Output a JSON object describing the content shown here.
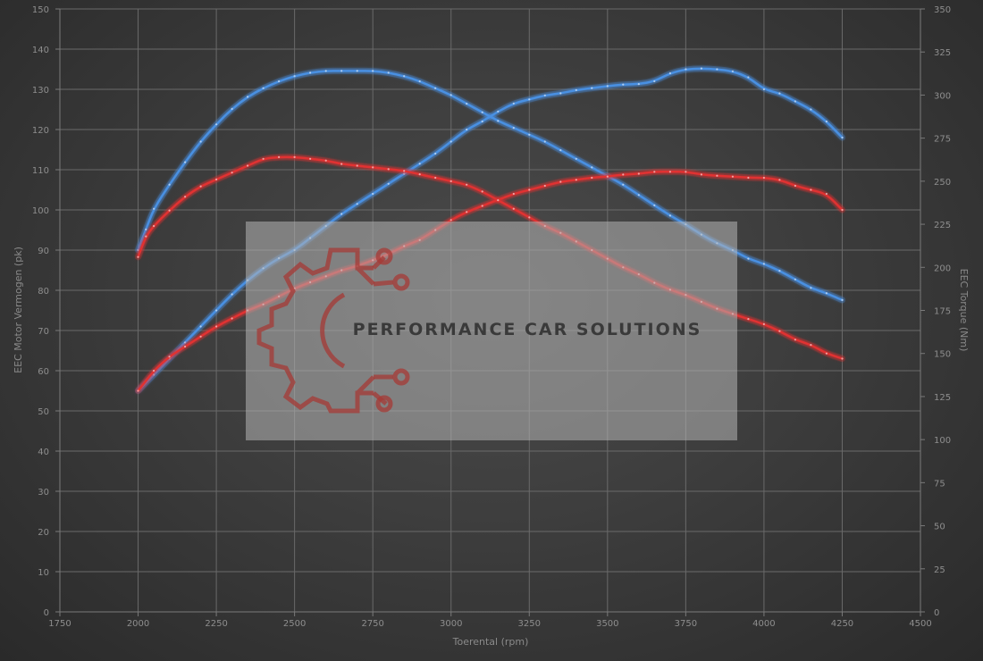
{
  "chart_data": {
    "type": "line",
    "xlabel": "Toerental (rpm)",
    "ylabel_left": "EEC Motor Vermogen (pk)",
    "ylabel_right": "EEC Torque (Nm)",
    "xlim": [
      1750,
      4500
    ],
    "ylim_left": [
      0,
      150
    ],
    "ylim_right": [
      0,
      350
    ],
    "x_ticks": [
      1750,
      2000,
      2250,
      2500,
      2750,
      3000,
      3250,
      3500,
      3750,
      4000,
      4250,
      4500
    ],
    "y_ticks_left": [
      0,
      10,
      20,
      30,
      40,
      50,
      60,
      70,
      80,
      90,
      100,
      110,
      120,
      130,
      140,
      150
    ],
    "y_ticks_right": [
      0,
      25,
      50,
      75,
      100,
      125,
      150,
      175,
      200,
      225,
      250,
      275,
      300,
      325,
      350
    ],
    "grid": true,
    "series": [
      {
        "axis": "left",
        "color": "#4a90e2",
        "x": [
          2000,
          2050,
          2100,
          2150,
          2200,
          2250,
          2300,
          2350,
          2400,
          2450,
          2500,
          2550,
          2600,
          2650,
          2700,
          2750,
          2800,
          2850,
          2900,
          2950,
          3000,
          3050,
          3100,
          3150,
          3200,
          3250,
          3300,
          3350,
          3400,
          3450,
          3500,
          3550,
          3600,
          3650,
          3700,
          3750,
          3800,
          3850,
          3900,
          3950,
          4000,
          4050,
          4100,
          4150,
          4200,
          4250
        ],
        "values": [
          55,
          59,
          63,
          67,
          71,
          75,
          79,
          82.5,
          85.5,
          88,
          90,
          93,
          96,
          99,
          101.5,
          104,
          106.5,
          109,
          111.5,
          114,
          117,
          120,
          122,
          124.5,
          126.5,
          127.5,
          128.5,
          129,
          129.8,
          130.3,
          130.8,
          131.2,
          131.3,
          132,
          134,
          135,
          135.2,
          135,
          134.5,
          133,
          130,
          129,
          127,
          125,
          122,
          118
        ]
      },
      {
        "axis": "right",
        "color": "#4a90e2",
        "x": [
          2000,
          2025,
          2050,
          2100,
          2150,
          2200,
          2250,
          2300,
          2350,
          2400,
          2450,
          2500,
          2550,
          2600,
          2650,
          2700,
          2750,
          2800,
          2850,
          2900,
          2950,
          3000,
          3050,
          3100,
          3150,
          3200,
          3250,
          3300,
          3350,
          3400,
          3450,
          3500,
          3550,
          3600,
          3650,
          3700,
          3750,
          3800,
          3850,
          3900,
          3950,
          4000,
          4050,
          4100,
          4150,
          4200,
          4250
        ],
        "values": [
          210,
          222,
          234,
          248,
          261,
          273,
          283,
          292,
          299,
          304,
          308,
          311,
          313,
          314,
          314,
          314,
          314,
          313,
          311,
          308,
          304,
          300,
          295,
          290,
          285,
          281,
          277,
          273,
          268,
          263,
          258,
          253,
          248,
          242,
          236,
          230,
          225,
          219,
          214,
          210,
          205,
          202,
          198,
          193,
          188,
          185,
          181
        ]
      },
      {
        "axis": "left",
        "color": "#e03030",
        "x": [
          2000,
          2050,
          2100,
          2150,
          2200,
          2250,
          2300,
          2350,
          2400,
          2450,
          2500,
          2550,
          2600,
          2650,
          2700,
          2750,
          2800,
          2850,
          2900,
          2950,
          3000,
          3050,
          3100,
          3150,
          3200,
          3250,
          3300,
          3350,
          3400,
          3450,
          3500,
          3550,
          3600,
          3650,
          3700,
          3750,
          3800,
          3850,
          3900,
          3950,
          4000,
          4050,
          4100,
          4150,
          4200,
          4250
        ],
        "values": [
          55,
          60,
          63.5,
          66,
          68.5,
          71,
          73,
          75,
          76.5,
          78.5,
          80.5,
          82,
          83.5,
          85,
          86,
          87.5,
          89,
          91,
          92.5,
          95,
          97.5,
          99.5,
          101,
          102.5,
          104,
          105,
          106,
          107,
          107.5,
          108,
          108.3,
          108.8,
          109,
          109.5,
          109.5,
          109.5,
          108.8,
          108.5,
          108.3,
          108,
          108,
          107.5,
          106,
          105,
          104,
          100
        ]
      },
      {
        "axis": "right",
        "color": "#e03030",
        "x": [
          2000,
          2025,
          2050,
          2100,
          2150,
          2200,
          2250,
          2300,
          2350,
          2400,
          2450,
          2500,
          2550,
          2600,
          2650,
          2700,
          2750,
          2800,
          2850,
          2900,
          2950,
          3000,
          3050,
          3100,
          3150,
          3200,
          3250,
          3300,
          3350,
          3400,
          3450,
          3500,
          3550,
          3600,
          3650,
          3700,
          3750,
          3800,
          3850,
          3900,
          3950,
          4000,
          4050,
          4100,
          4150,
          4200,
          4250
        ],
        "values": [
          206,
          218,
          224,
          233,
          241,
          247,
          251,
          255,
          259,
          263,
          264,
          264,
          263,
          262,
          260,
          259,
          258,
          257,
          256,
          254,
          252,
          250,
          248,
          244,
          239,
          234,
          229,
          224,
          220,
          215,
          210,
          205,
          200,
          196,
          191,
          187,
          184,
          180,
          176,
          173,
          170,
          167,
          163,
          158,
          155,
          150,
          147
        ]
      }
    ],
    "watermark": "PERFORMANCE CAR SOLUTIONS"
  }
}
